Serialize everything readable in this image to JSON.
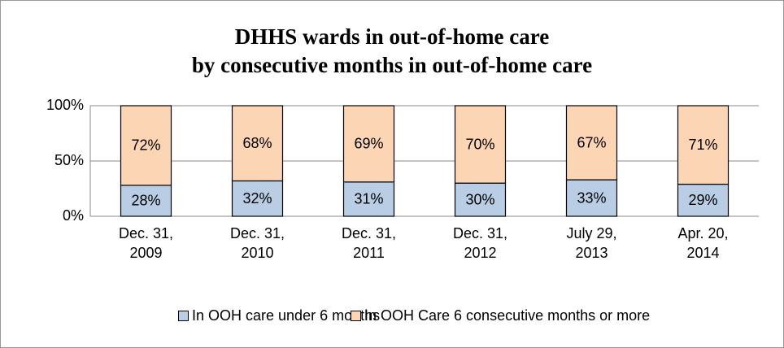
{
  "chart_data": {
    "type": "stacked_bar",
    "title": "DHHS wards in out-of-home care\nby consecutive months in out-of-home care",
    "categories": [
      "Dec. 31, 2009",
      "Dec. 31, 2010",
      "Dec. 31, 2011",
      "Dec. 31, 2012",
      "July 29, 2013",
      "Apr. 20, 2014"
    ],
    "series": [
      {
        "name": "In OOH care under 6 months",
        "color": "#b9cde5",
        "values": [
          28,
          32,
          31,
          30,
          33,
          29
        ],
        "value_labels": [
          "28%",
          "32%",
          "31%",
          "30%",
          "33%",
          "29%"
        ]
      },
      {
        "name": "In OOH Care 6 consecutive months or more",
        "color": "#fcd5b5",
        "values": [
          72,
          68,
          69,
          70,
          67,
          71
        ],
        "value_labels": [
          "72%",
          "68%",
          "69%",
          "70%",
          "67%",
          "71%"
        ]
      }
    ],
    "ylim": [
      0,
      100
    ],
    "yticks": [
      {
        "value": 0,
        "label": "0%"
      },
      {
        "value": 50,
        "label": "50%"
      },
      {
        "value": 100,
        "label": "100%"
      }
    ],
    "grid": true,
    "legend": "bottom"
  }
}
